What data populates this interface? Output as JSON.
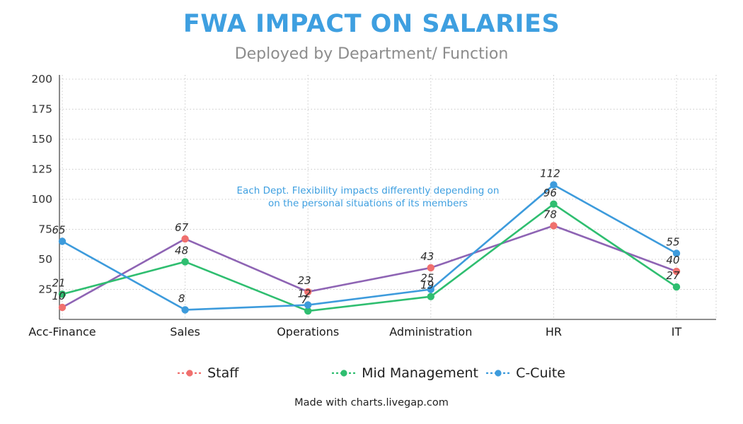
{
  "title": "FWA IMPACT ON SALARIES",
  "subtitle": "Deployed by Department/ Function",
  "annotation": {
    "line1": "Each Dept. Flexibility impacts differently depending on",
    "line2": "on the personal situations of its members"
  },
  "footer": "Made with charts.livegap.com",
  "colors": {
    "title": "#3E9FE0",
    "subtitle": "#8C8C8C",
    "annotation": "#3E9FE0",
    "axis": "#4A4A4A",
    "grid": "#C9C9C9",
    "tick_text": "#333333",
    "category_text": "#1A1A1A",
    "point_label_text": "#2B2B2B"
  },
  "chart_data": {
    "type": "line",
    "title": "FWA IMPACT ON SALARIES",
    "subtitle": "Deployed by Department/ Function",
    "categories": [
      "Acc-Finance",
      "Sales",
      "Operations",
      "Administration",
      "HR",
      "IT"
    ],
    "series": [
      {
        "name": "Staff",
        "values": [
          10,
          67,
          23,
          43,
          78,
          40
        ],
        "line_color": "#8E64B4",
        "marker_color": "#F0706E"
      },
      {
        "name": "Mid Management",
        "values": [
          21,
          48,
          7,
          19,
          96,
          27
        ],
        "line_color": "#2FBE70",
        "marker_color": "#2FBE70"
      },
      {
        "name": "C-Cuite",
        "values": [
          65,
          8,
          12,
          25,
          112,
          55
        ],
        "line_color": "#3D9BDC",
        "marker_color": "#3D9BDC"
      }
    ],
    "yticks": [
      25,
      50,
      75,
      100,
      125,
      150,
      175,
      200
    ],
    "ylim": [
      0,
      205
    ],
    "grid": "dotted",
    "legend_position": "bottom",
    "point_labels": true
  }
}
